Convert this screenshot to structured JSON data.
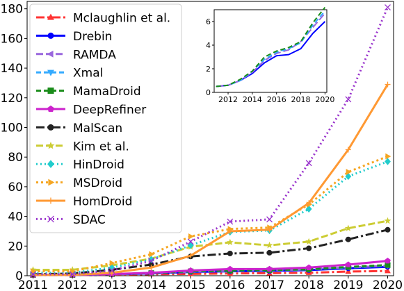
{
  "chart_data": [
    {
      "type": "line",
      "title": "",
      "xlabel": "",
      "ylabel": "",
      "x": [
        2011,
        2012,
        2013,
        2014,
        2015,
        2016,
        2017,
        2018,
        2019,
        2020
      ],
      "xlim": [
        2010.85,
        2020.15
      ],
      "ylim": [
        0,
        185
      ],
      "yticks": [
        0,
        20,
        40,
        60,
        80,
        100,
        120,
        140,
        160,
        180
      ],
      "grid": false,
      "legend_position": "upper-left",
      "series": [
        {
          "name": "Mclaughlin et al.",
          "color": "#ff3333",
          "dash": "12,4,3,4",
          "marker": "triangle-up",
          "values": [
            0.4,
            0.4,
            0.7,
            1.0,
            1.2,
            1.5,
            1.7,
            2.0,
            2.8,
            3.2
          ]
        },
        {
          "name": "Drebin",
          "color": "#0000ff",
          "dash": "",
          "marker": "circle",
          "values": [
            0.5,
            0.5,
            1.0,
            1.5,
            2.5,
            3.0,
            3.2,
            3.8,
            5.0,
            6.0
          ]
        },
        {
          "name": "RAMDA",
          "color": "#9966dd",
          "dash": "10,4",
          "marker": "triangle-left",
          "values": [
            0.5,
            0.5,
            1.0,
            1.7,
            2.7,
            3.3,
            3.6,
            4.3,
            5.5,
            6.7
          ]
        },
        {
          "name": "Xmal",
          "color": "#33aaff",
          "dash": "7,4",
          "marker": "triangle-down",
          "values": [
            0.5,
            0.5,
            1.0,
            1.8,
            2.8,
            3.4,
            3.7,
            4.2,
            5.7,
            6.9
          ]
        },
        {
          "name": "MamaDroid",
          "color": "#1a8c1a",
          "dash": "7,4",
          "marker": "square",
          "values": [
            0.5,
            0.5,
            1.1,
            1.8,
            3.0,
            3.5,
            3.8,
            4.3,
            5.9,
            7.2
          ]
        },
        {
          "name": "DeepRefiner",
          "color": "#cc22cc",
          "dash": "",
          "marker": "pentagon",
          "values": [
            0.5,
            0.6,
            1.1,
            2.0,
            3.5,
            4.5,
            4.5,
            5.5,
            7.5,
            10.0
          ]
        },
        {
          "name": "MalScan",
          "color": "#222222",
          "dash": "12,4,3,4",
          "marker": "circle",
          "values": [
            1.0,
            1.5,
            4.0,
            7.5,
            13.0,
            15.0,
            15.5,
            18.5,
            24.5,
            31.0
          ]
        },
        {
          "name": "Kim et al.",
          "color": "#cccc33",
          "dash": "10,4",
          "marker": "star",
          "values": [
            4.0,
            4.0,
            7.0,
            11.5,
            19.5,
            22.5,
            20.5,
            23.0,
            32.0,
            37.0
          ]
        },
        {
          "name": "HinDroid",
          "color": "#22cccc",
          "dash": "2,4",
          "marker": "diamond",
          "values": [
            2.0,
            2.0,
            5.5,
            11.0,
            20.5,
            29.5,
            30.5,
            45.0,
            67.0,
            77.0
          ]
        },
        {
          "name": "MSDroid",
          "color": "#f5a623",
          "dash": "3,4",
          "marker": "triangle-right",
          "values": [
            3.0,
            3.0,
            8.5,
            14.5,
            26.5,
            31.5,
            32.5,
            48.0,
            70.0,
            80.5
          ]
        },
        {
          "name": "HomDroid",
          "color": "#ff9933",
          "dash": "",
          "marker": "plus",
          "values": [
            0.5,
            0.5,
            2.0,
            5.5,
            13.5,
            30.0,
            31.0,
            49.0,
            85.0,
            129.0
          ]
        },
        {
          "name": "SDAC",
          "color": "#9933cc",
          "dash": "2,4",
          "marker": "x",
          "values": [
            1.0,
            1.0,
            3.5,
            10.0,
            23.0,
            36.5,
            38.0,
            76.0,
            119.0,
            181.0
          ]
        }
      ]
    },
    {
      "type": "line",
      "title": "",
      "xlabel": "",
      "ylabel": "",
      "x": [
        2011,
        2012,
        2013,
        2014,
        2015,
        2016,
        2017,
        2018,
        2019,
        2020
      ],
      "xticks": [
        2012,
        2014,
        2016,
        2018,
        2020
      ],
      "xlim": [
        2010.85,
        2020.15
      ],
      "ylim": [
        0,
        7
      ],
      "yticks": [
        0,
        2,
        4,
        6
      ],
      "grid": false,
      "legend_position": "none",
      "series": [
        {
          "color": "#0000ff",
          "dash": "",
          "values": [
            0.5,
            0.6,
            1.0,
            1.6,
            2.5,
            3.1,
            3.2,
            3.7,
            5.0,
            6.0
          ]
        },
        {
          "color": "#9966dd",
          "dash": "10,4",
          "values": [
            0.5,
            0.6,
            1.0,
            1.7,
            2.7,
            3.3,
            3.6,
            4.3,
            5.5,
            6.7
          ]
        },
        {
          "color": "#33aaff",
          "dash": "7,4",
          "values": [
            0.5,
            0.6,
            1.0,
            1.8,
            2.8,
            3.4,
            3.7,
            4.2,
            5.7,
            6.9
          ]
        },
        {
          "color": "#1a8c1a",
          "dash": "7,4",
          "values": [
            0.5,
            0.6,
            1.1,
            1.8,
            3.0,
            3.5,
            3.8,
            4.3,
            5.9,
            7.2
          ]
        }
      ]
    }
  ]
}
